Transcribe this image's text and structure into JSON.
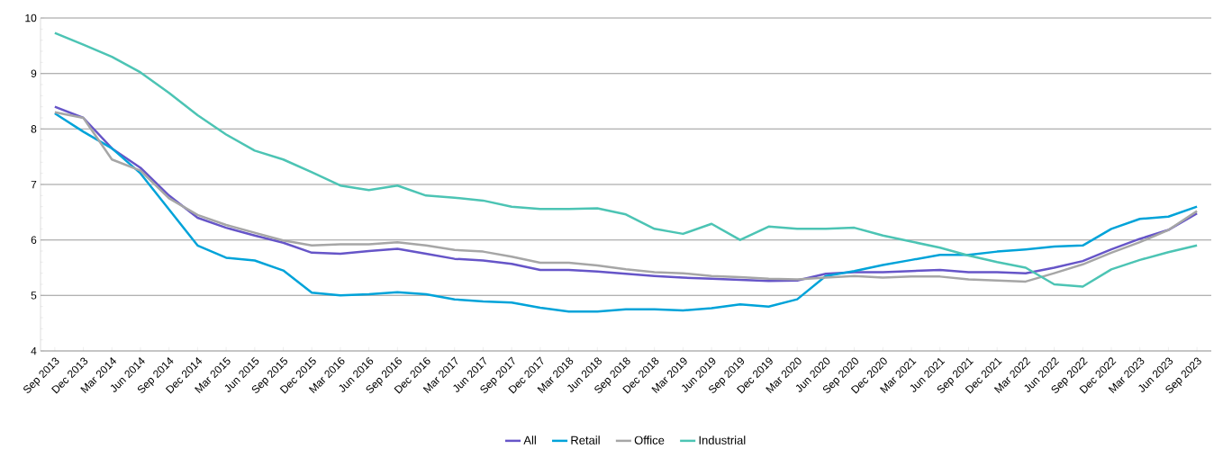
{
  "chart_data": {
    "type": "line",
    "categories": [
      "Sep 2013",
      "Dec 2013",
      "Mar 2014",
      "Jun 2014",
      "Sep 2014",
      "Dec 2014",
      "Mar 2015",
      "Jun 2015",
      "Sep 2015",
      "Dec 2015",
      "Mar 2016",
      "Jun 2016",
      "Sep 2016",
      "Dec 2016",
      "Mar 2017",
      "Jun 2017",
      "Sep 2017",
      "Dec 2017",
      "Mar 2018",
      "Jun 2018",
      "Sep 2018",
      "Dec 2018",
      "Mar 2019",
      "Jun 2019",
      "Sep 2019",
      "Dec 2019",
      "Mar 2020",
      "Jun 2020",
      "Sep 2020",
      "Dec 2020",
      "Mar 2021",
      "Jun 2021",
      "Sep 2021",
      "Dec 2021",
      "Mar 2022",
      "Jun 2022",
      "Sep 2022",
      "Dec 2022",
      "Mar 2023",
      "Jun 2023",
      "Sep 2023"
    ],
    "series": [
      {
        "name": "All",
        "color": "#6655c8",
        "values": [
          8.4,
          8.2,
          7.65,
          7.3,
          6.8,
          6.4,
          6.22,
          6.08,
          5.95,
          5.77,
          5.75,
          5.8,
          5.84,
          5.75,
          5.66,
          5.63,
          5.57,
          5.46,
          5.46,
          5.43,
          5.39,
          5.35,
          5.32,
          5.3,
          5.28,
          5.26,
          5.27,
          5.39,
          5.42,
          5.42,
          5.44,
          5.46,
          5.42,
          5.42,
          5.4,
          5.5,
          5.62,
          5.83,
          6.02,
          6.18,
          6.48
        ]
      },
      {
        "name": "Retail",
        "color": "#00a3d9",
        "values": [
          8.28,
          7.95,
          7.65,
          7.2,
          6.55,
          5.9,
          5.68,
          5.63,
          5.45,
          5.05,
          5.0,
          5.02,
          5.06,
          5.02,
          4.93,
          4.89,
          4.87,
          4.78,
          4.71,
          4.71,
          4.75,
          4.75,
          4.73,
          4.77,
          4.84,
          4.8,
          4.93,
          5.35,
          5.44,
          5.55,
          5.64,
          5.73,
          5.73,
          5.79,
          5.83,
          5.88,
          5.9,
          6.2,
          6.38,
          6.42,
          6.6
        ]
      },
      {
        "name": "Office",
        "color": "#a6a6a6",
        "values": [
          8.3,
          8.2,
          7.45,
          7.25,
          6.75,
          6.45,
          6.27,
          6.13,
          5.99,
          5.9,
          5.92,
          5.92,
          5.96,
          5.9,
          5.82,
          5.79,
          5.7,
          5.59,
          5.59,
          5.54,
          5.47,
          5.42,
          5.4,
          5.35,
          5.33,
          5.3,
          5.29,
          5.32,
          5.35,
          5.32,
          5.34,
          5.34,
          5.29,
          5.27,
          5.25,
          5.4,
          5.56,
          5.77,
          5.96,
          6.18,
          6.52
        ]
      },
      {
        "name": "Industrial",
        "color": "#4cc4b4",
        "values": [
          9.73,
          9.52,
          9.3,
          9.02,
          8.65,
          8.25,
          7.9,
          7.61,
          7.45,
          7.22,
          6.98,
          6.9,
          6.98,
          6.8,
          6.76,
          6.71,
          6.6,
          6.56,
          6.56,
          6.57,
          6.46,
          6.2,
          6.11,
          6.29,
          6.0,
          6.24,
          6.2,
          6.2,
          6.22,
          6.08,
          5.97,
          5.86,
          5.72,
          5.6,
          5.5,
          5.2,
          5.16,
          5.47,
          5.64,
          5.78,
          5.9
        ]
      }
    ],
    "ylim": [
      4,
      10
    ],
    "yticks": [
      4,
      5,
      6,
      7,
      8,
      9,
      10
    ],
    "grid": "y",
    "legend": "bottom",
    "marker": "none",
    "line_style": "solid"
  }
}
